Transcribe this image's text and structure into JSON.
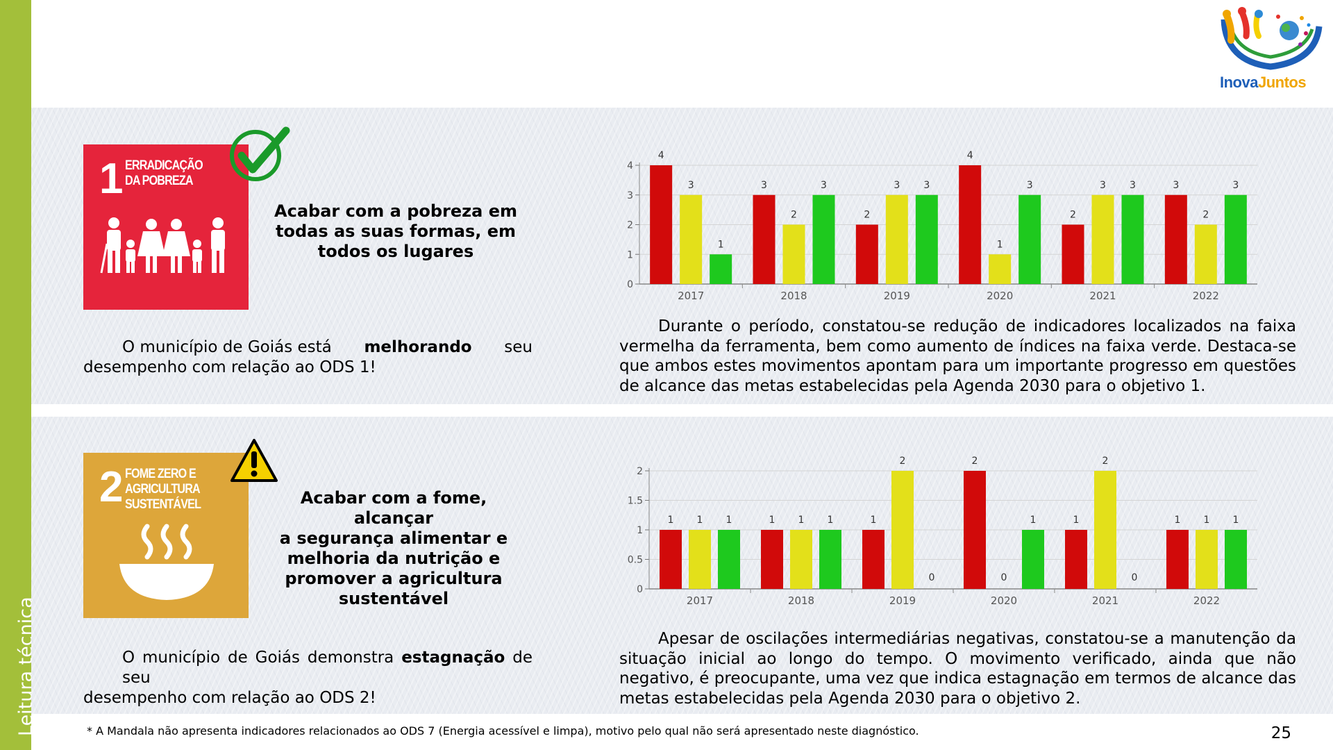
{
  "sidebar": {
    "label": "Leitura técnica"
  },
  "logo": {
    "text_a": "Inova",
    "text_b": "Juntos"
  },
  "colors": {
    "red": "#d10a0a",
    "yellow": "#e3e01a",
    "green": "#1ec91e",
    "sdg1": "#e5243b",
    "sdg2": "#dda63a",
    "sidebar": "#a3bf3a"
  },
  "ods1": {
    "sdg_number": "1",
    "sdg_title_line1": "ERRADICAÇÃO",
    "sdg_title_line2": "DA POBREZA",
    "status_icon": "checkmark-icon",
    "goal_text_lines": [
      "Acabar com a pobreza em",
      "todas as suas formas, em",
      "todos os lugares"
    ],
    "status_prefix": "O município de Goiás está",
    "status_bold": "melhorando",
    "status_suffix": "seu desempenho com relação ao ODS 1!",
    "paragraph": "Durante o período, constatou-se redução de indicadores localizados na faixa vermelha da ferramenta, bem como aumento de índices na faixa verde. Destaca-se que ambos estes movimentos apontam para um importante progresso em questões de alcance das metas estabelecidas pela Agenda 2030 para o objetivo 1."
  },
  "ods2": {
    "sdg_number": "2",
    "sdg_title_line1": "FOME ZERO E",
    "sdg_title_line2": "AGRICULTURA",
    "sdg_title_line3": "SUSTENTÁVEL",
    "status_icon": "warning-icon",
    "goal_text_lines": [
      "Acabar com a fome, alcançar",
      "a segurança alimentar e",
      "melhoria da nutrição e",
      "promover a agricultura",
      "sustentável"
    ],
    "status_prefix": "O município de Goiás demonstra",
    "status_bold": "estagnação",
    "status_suffix": "de seu desempenho com relação ao ODS 2!",
    "paragraph": "Apesar de oscilações intermediárias negativas, constatou-se a manutenção da situação inicial ao longo do tempo. O movimento verificado, ainda que não negativo, é preocupante, uma vez que indica estagnação em termos de alcance das metas estabelecidas pela Agenda 2030 para o objetivo 2."
  },
  "chart_data": [
    {
      "type": "bar",
      "categories": [
        "2017",
        "2018",
        "2019",
        "2020",
        "2021",
        "2022"
      ],
      "series": [
        {
          "name": "Vermelho",
          "color": "#d10a0a",
          "values": [
            4,
            3,
            2,
            4,
            2,
            3
          ]
        },
        {
          "name": "Amarelo",
          "color": "#e3e01a",
          "values": [
            3,
            2,
            3,
            1,
            3,
            2
          ]
        },
        {
          "name": "Verde",
          "color": "#1ec91e",
          "values": [
            1,
            3,
            3,
            3,
            3,
            3
          ]
        }
      ],
      "yticks": [
        "0",
        "1",
        "2",
        "3",
        "4"
      ],
      "ylim": [
        0,
        4
      ],
      "title": "",
      "xlabel": "",
      "ylabel": ""
    },
    {
      "type": "bar",
      "categories": [
        "2017",
        "2018",
        "2019",
        "2020",
        "2021",
        "2022"
      ],
      "series": [
        {
          "name": "Vermelho",
          "color": "#d10a0a",
          "values": [
            1,
            1,
            1,
            2,
            1,
            1
          ]
        },
        {
          "name": "Amarelo",
          "color": "#e3e01a",
          "values": [
            1,
            1,
            2,
            0,
            2,
            1
          ]
        },
        {
          "name": "Verde",
          "color": "#1ec91e",
          "values": [
            1,
            1,
            0,
            1,
            0,
            1
          ]
        }
      ],
      "yticks": [
        "0",
        "0.5",
        "1",
        "1.5",
        "2"
      ],
      "ylim": [
        0,
        2
      ],
      "title": "",
      "xlabel": "",
      "ylabel": ""
    }
  ],
  "footnote": "* A Mandala não apresenta indicadores relacionados ao ODS 7 (Energia acessível e limpa), motivo pelo qual não será apresentado neste diagnóstico.",
  "page_number": "25"
}
